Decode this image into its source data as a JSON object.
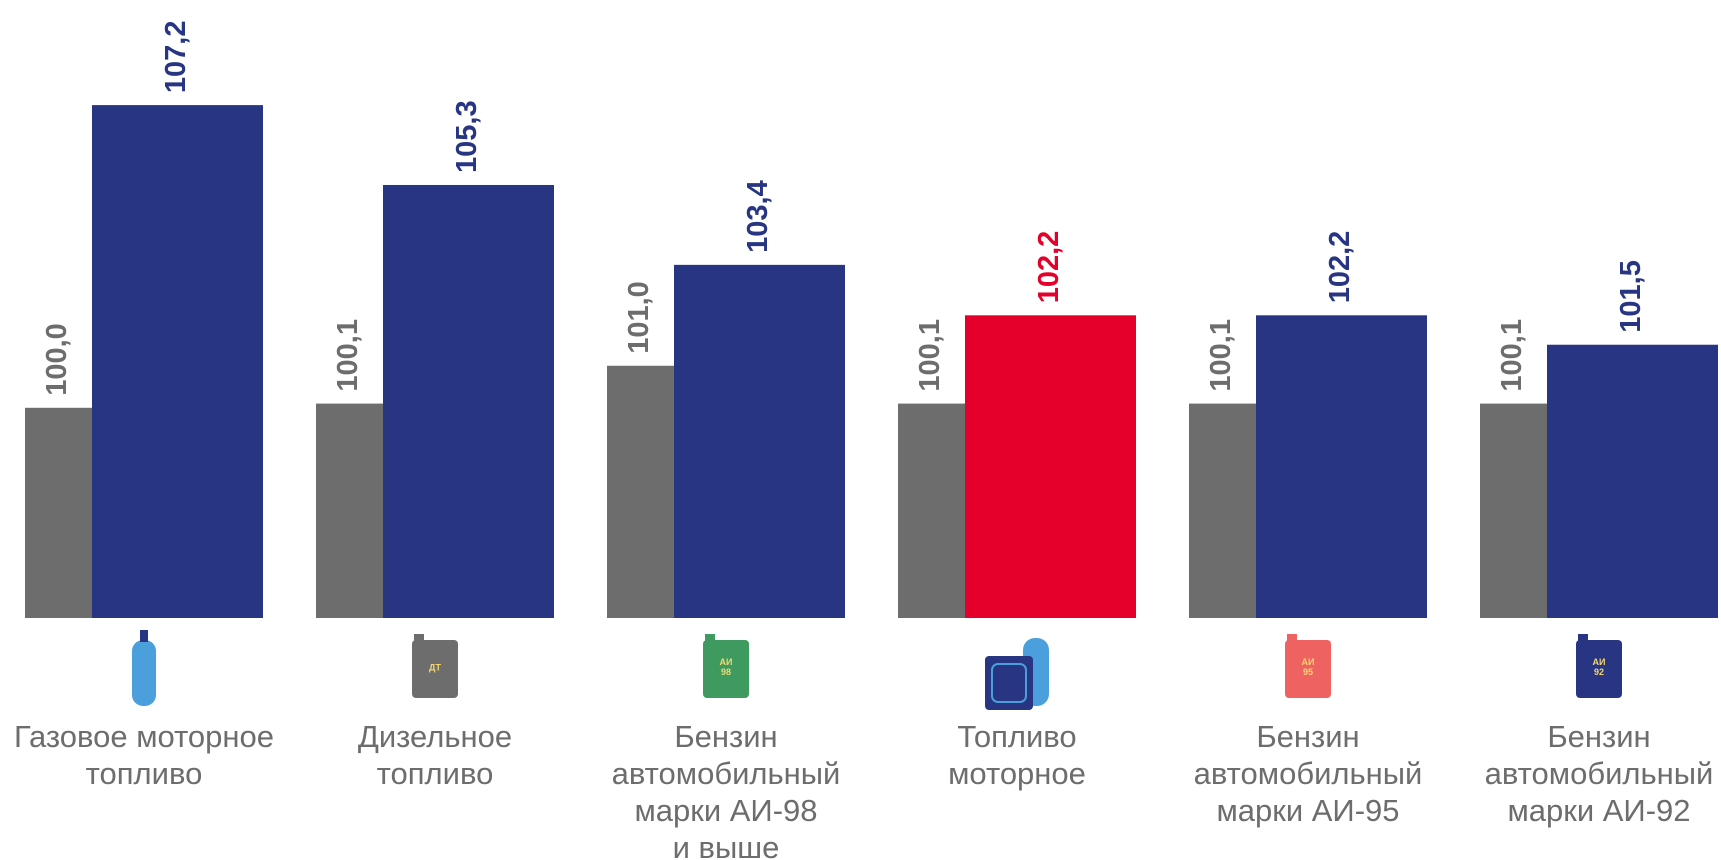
{
  "chart_data": {
    "type": "bar",
    "categories": [
      "Газовое моторное\nтопливо",
      "Дизельное\nтопливо",
      "Бензин\nавтомобильный\nмарки АИ-98\nи выше",
      "Топливо\nмоторное",
      "Бензин\nавтомобильный\nмарки АИ-95",
      "Бензин\nавтомобильный\nмарки АИ-92"
    ],
    "icon_labels": [
      null,
      "ДТ",
      "АИ\n98",
      null,
      "АИ\n95",
      "АИ\n92"
    ],
    "series": [
      {
        "color": "#6d6d6d",
        "values": [
          100.0,
          100.1,
          101.0,
          100.1,
          100.1,
          100.1
        ],
        "value_labels": [
          "100,0",
          "100,1",
          "101,0",
          "100,1",
          "100,1",
          "100,1"
        ]
      },
      {
        "color": "#283583",
        "colors": [
          "#283583",
          "#283583",
          "#283583",
          "#e4002b",
          "#283583",
          "#283583"
        ],
        "values": [
          107.2,
          105.3,
          103.4,
          102.2,
          102.2,
          101.5
        ],
        "value_labels": [
          "107,2",
          "105,3",
          "103,4",
          "102,2",
          "102,2",
          "101,5"
        ]
      }
    ],
    "ylim": [
      95,
      109.7
    ]
  }
}
